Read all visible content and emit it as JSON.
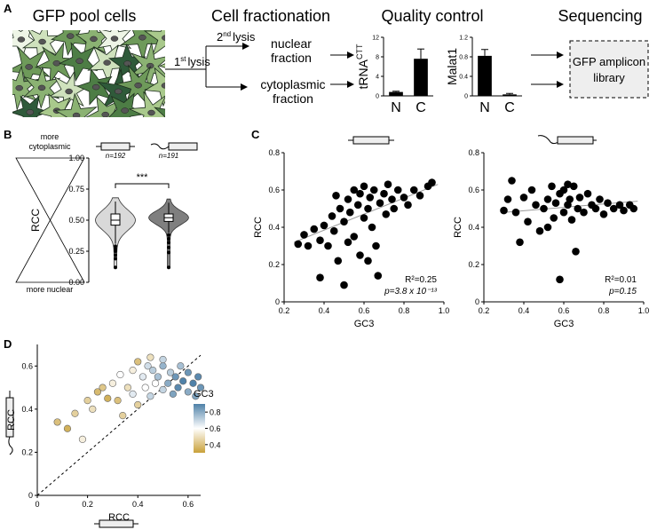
{
  "panel_labels": [
    "A",
    "B",
    "C",
    "D"
  ],
  "panel_a": {
    "steps": [
      "GFP pool cells",
      "Cell fractionation",
      "Quality control",
      "Sequencing"
    ],
    "first_lysis": {
      "number": "1",
      "suffix": "st",
      "word": "lysis"
    },
    "second_lysis": {
      "number": "2",
      "suffix": "nd",
      "word": "lysis"
    },
    "nuclear_fraction": [
      "nuclear",
      "fraction"
    ],
    "cytoplasmic_fraction": [
      "cytoplasmic",
      "fraction"
    ],
    "library": [
      "GFP amplicon",
      "library"
    ]
  },
  "chart_data": [
    {
      "type": "bar",
      "ylabel": "tRNA",
      "ylabel_sup": "CTT",
      "categories": [
        "N",
        "C"
      ],
      "values": [
        0.8,
        7.6
      ],
      "errors": [
        0.15,
        2.0
      ],
      "color": "#000000",
      "ylim": [
        0,
        12
      ],
      "yticks": [
        0,
        4,
        8,
        12
      ]
    },
    {
      "type": "bar",
      "ylabel": "Malat1",
      "categories": [
        "N",
        "C"
      ],
      "values": [
        0.82,
        0.03
      ],
      "errors": [
        0.13,
        0.02
      ],
      "color": "#000000",
      "ylim": [
        0,
        1.2
      ],
      "yticks": [
        0,
        0.4,
        0.8,
        1.2
      ]
    },
    {
      "type": "violin",
      "ylabel": "RCC",
      "top_label": [
        "more",
        "cytoplasmic"
      ],
      "bottom_label": "more nuclear",
      "ylim": [
        0,
        1
      ],
      "yticks": [
        {
          "value": 0,
          "label": "0.00"
        },
        0.25,
        {
          "value": 0.5,
          "label": "0.50"
        },
        0.75,
        {
          "value": 1,
          "label": "1.00"
        }
      ],
      "significance": "***",
      "groups": [
        {
          "n_label": "n=192",
          "color": "#d9d9d9",
          "median": 0.5,
          "q1": 0.46,
          "q3": 0.55,
          "whisker_low": 0.31,
          "whisker_high": 0.65,
          "outliers": [
            0.29,
            0.27,
            0.25,
            0.22,
            0.19,
            0.12
          ]
        },
        {
          "n_label": "n=191",
          "color": "#7f7f7f",
          "median": 0.52,
          "q1": 0.49,
          "q3": 0.55,
          "whisker_low": 0.4,
          "whisker_high": 0.64,
          "outliers": [
            0.38,
            0.35,
            0.32,
            0.28,
            0.24,
            0.12
          ]
        }
      ]
    },
    {
      "type": "scatter",
      "xlabel": "GC3",
      "ylabel": "RCC",
      "color": "#000000",
      "xlim": [
        0.2,
        1
      ],
      "ylim": [
        0,
        0.8
      ],
      "xticks": [
        0.2,
        0.4,
        0.6,
        0.8,
        {
          "value": 1,
          "label": "1.0"
        }
      ],
      "yticks": [
        0,
        0.2,
        0.4,
        0.6,
        0.8
      ],
      "x": [
        0.27,
        0.3,
        0.32,
        0.35,
        0.38,
        0.38,
        0.4,
        0.42,
        0.44,
        0.45,
        0.47,
        0.48,
        0.5,
        0.5,
        0.52,
        0.53,
        0.55,
        0.55,
        0.57,
        0.58,
        0.6,
        0.6,
        0.62,
        0.63,
        0.64,
        0.65,
        0.66,
        0.67,
        0.68,
        0.7,
        0.71,
        0.72,
        0.74,
        0.75,
        0.77,
        0.8,
        0.82,
        0.85,
        0.88,
        0.92,
        0.94,
        0.58,
        0.46,
        0.52,
        0.62
      ],
      "values": [
        0.31,
        0.36,
        0.3,
        0.39,
        0.13,
        0.33,
        0.41,
        0.3,
        0.46,
        0.38,
        0.22,
        0.5,
        0.09,
        0.43,
        0.55,
        0.48,
        0.6,
        0.35,
        0.52,
        0.58,
        0.45,
        0.62,
        0.5,
        0.56,
        0.4,
        0.6,
        0.3,
        0.14,
        0.53,
        0.58,
        0.47,
        0.63,
        0.55,
        0.5,
        0.6,
        0.56,
        0.52,
        0.6,
        0.57,
        0.62,
        0.64,
        0.25,
        0.57,
        0.32,
        0.22
      ],
      "fit": {
        "x": [
          0.25,
          0.97
        ],
        "y": [
          0.32,
          0.63
        ]
      },
      "annotations": [
        "R²=0.25",
        "p=3.8 x 10⁻¹³"
      ]
    },
    {
      "type": "scatter",
      "xlabel": "GC3",
      "ylabel": "RCC",
      "color": "#000000",
      "xlim": [
        0.2,
        1
      ],
      "ylim": [
        0,
        0.8
      ],
      "xticks": [
        0.2,
        0.4,
        0.6,
        0.8,
        {
          "value": 1,
          "label": "1.0"
        }
      ],
      "yticks": [
        0,
        0.2,
        0.4,
        0.6,
        0.8
      ],
      "x": [
        0.3,
        0.32,
        0.34,
        0.36,
        0.38,
        0.4,
        0.42,
        0.44,
        0.46,
        0.48,
        0.5,
        0.52,
        0.54,
        0.55,
        0.56,
        0.58,
        0.58,
        0.6,
        0.6,
        0.62,
        0.63,
        0.64,
        0.65,
        0.66,
        0.67,
        0.68,
        0.7,
        0.72,
        0.74,
        0.76,
        0.78,
        0.8,
        0.82,
        0.85,
        0.88,
        0.9,
        0.93,
        0.95,
        0.52,
        0.62
      ],
      "values": [
        0.49,
        0.55,
        0.65,
        0.48,
        0.32,
        0.56,
        0.43,
        0.6,
        0.52,
        0.38,
        0.5,
        0.55,
        0.62,
        0.45,
        0.53,
        0.58,
        0.12,
        0.48,
        0.6,
        0.52,
        0.55,
        0.44,
        0.62,
        0.27,
        0.5,
        0.56,
        0.48,
        0.58,
        0.52,
        0.5,
        0.55,
        0.47,
        0.53,
        0.5,
        0.52,
        0.49,
        0.52,
        0.5,
        0.4,
        0.63
      ],
      "fit": {
        "x": [
          0.3,
          0.97
        ],
        "y": [
          0.48,
          0.54
        ]
      },
      "annotations": [
        "R²=0.01",
        "p=0.15"
      ]
    },
    {
      "type": "scatter",
      "xlabel": "RCC",
      "ylabel": "RCC",
      "colorbar_label": "GC3",
      "xlim": [
        0,
        0.65
      ],
      "ylim": [
        0,
        0.7
      ],
      "xticks": [
        0,
        0.2,
        0.4,
        0.6
      ],
      "yticks": [
        0,
        0.2,
        0.4,
        0.6
      ],
      "colormap": [
        "#c9a13a",
        "#ffffff",
        "#4f81a8"
      ],
      "clim": [
        0.3,
        0.9
      ],
      "colorbar_ticks": [
        0.4,
        0.6,
        0.8
      ],
      "x": [
        0.08,
        0.12,
        0.15,
        0.18,
        0.2,
        0.22,
        0.24,
        0.26,
        0.28,
        0.3,
        0.32,
        0.33,
        0.34,
        0.36,
        0.38,
        0.38,
        0.4,
        0.4,
        0.42,
        0.43,
        0.44,
        0.45,
        0.46,
        0.47,
        0.48,
        0.5,
        0.5,
        0.52,
        0.53,
        0.54,
        0.55,
        0.56,
        0.57,
        0.58,
        0.6,
        0.6,
        0.62,
        0.63,
        0.64,
        0.65,
        0.45,
        0.5
      ],
      "values": [
        0.34,
        0.31,
        0.38,
        0.26,
        0.44,
        0.4,
        0.48,
        0.5,
        0.45,
        0.52,
        0.44,
        0.56,
        0.37,
        0.5,
        0.58,
        0.47,
        0.62,
        0.42,
        0.55,
        0.5,
        0.6,
        0.46,
        0.58,
        0.52,
        0.55,
        0.49,
        0.6,
        0.52,
        0.57,
        0.47,
        0.55,
        0.5,
        0.6,
        0.53,
        0.48,
        0.57,
        0.52,
        0.46,
        0.55,
        0.5,
        0.64,
        0.63
      ],
      "color_values": [
        0.4,
        0.35,
        0.45,
        0.55,
        0.45,
        0.5,
        0.38,
        0.42,
        0.35,
        0.55,
        0.4,
        0.6,
        0.45,
        0.5,
        0.55,
        0.65,
        0.4,
        0.45,
        0.65,
        0.6,
        0.68,
        0.7,
        0.72,
        0.6,
        0.75,
        0.7,
        0.78,
        0.8,
        0.72,
        0.82,
        0.85,
        0.88,
        0.75,
        0.9,
        0.8,
        0.85,
        0.9,
        0.82,
        0.88,
        0.85,
        0.5,
        0.7
      ]
    }
  ]
}
